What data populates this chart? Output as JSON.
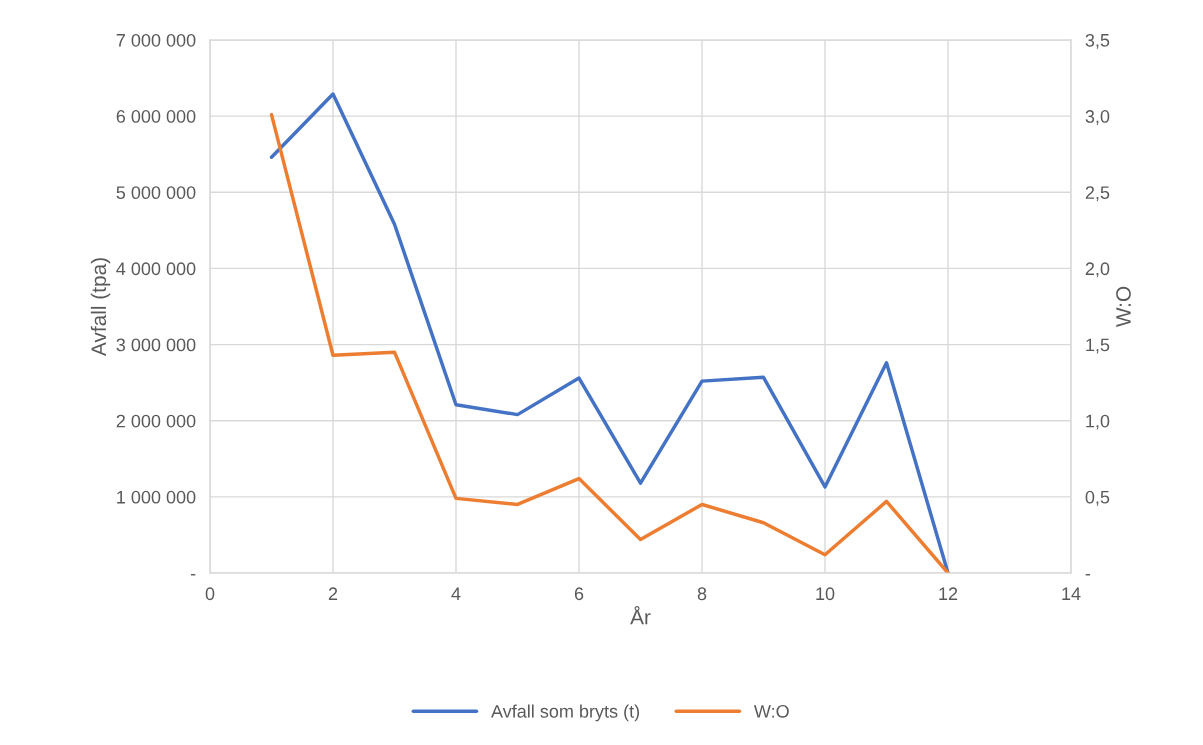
{
  "chart_data": {
    "type": "line",
    "xlabel": "År",
    "ylabel": "Avfall (tpa)",
    "y2label": "W:O",
    "x": [
      1,
      2,
      3,
      4,
      5,
      6,
      7,
      8,
      9,
      10,
      11,
      12
    ],
    "series": [
      {
        "name": "Avfall som bryts (t)",
        "color": "#4472c4",
        "values": [
          5460000,
          6290000,
          4580000,
          2210000,
          2080000,
          2560000,
          1180000,
          2520000,
          2570000,
          1130000,
          2760000,
          0
        ]
      },
      {
        "name": "W:O",
        "color": "#ed7d31",
        "axis": "y2",
        "values": [
          3.01,
          1.43,
          1.45,
          0.49,
          0.45,
          0.62,
          0.22,
          0.45,
          0.33,
          0.12,
          0.47,
          0
        ]
      }
    ],
    "xlim": [
      0,
      14
    ],
    "xticks": [
      0,
      2,
      4,
      6,
      8,
      10,
      12,
      14
    ],
    "ylim": [
      0,
      7000000
    ],
    "yticks": [
      {
        "value": 0,
        "label": "-"
      },
      {
        "value": 1000000,
        "label": "1 000 000"
      },
      {
        "value": 2000000,
        "label": "2 000 000"
      },
      {
        "value": 3000000,
        "label": "3 000 000"
      },
      {
        "value": 4000000,
        "label": "4 000 000"
      },
      {
        "value": 5000000,
        "label": "5 000 000"
      },
      {
        "value": 6000000,
        "label": "6 000 000"
      },
      {
        "value": 7000000,
        "label": "7 000 000"
      }
    ],
    "y2lim": [
      0,
      3.5
    ],
    "y2ticks": [
      {
        "value": 0,
        "label": "-"
      },
      {
        "value": 0.5,
        "label": "0,5"
      },
      {
        "value": 1,
        "label": "1,0"
      },
      {
        "value": 1.5,
        "label": "1,5"
      },
      {
        "value": 2,
        "label": "2,0"
      },
      {
        "value": 2.5,
        "label": "2,5"
      },
      {
        "value": 3,
        "label": "3,0"
      },
      {
        "value": 3.5,
        "label": "3,5"
      }
    ],
    "grid": true,
    "legend": "bottom",
    "marker": "none",
    "line_style": "solid"
  }
}
